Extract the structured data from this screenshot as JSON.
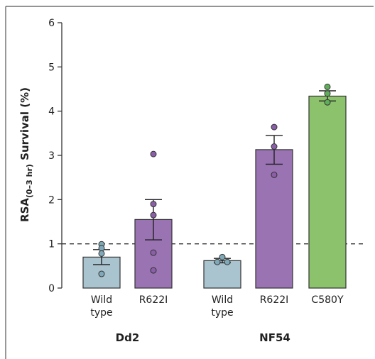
{
  "chart_data": {
    "type": "bar",
    "title": "",
    "ylabel": {
      "prefix": "RSA",
      "subscript": "(0–3 hr)",
      "suffix": " Survival (%)"
    },
    "ylim": [
      0,
      6
    ],
    "yticks": [
      "0",
      "1",
      "2",
      "3",
      "4",
      "5",
      "6"
    ],
    "reference_line": {
      "y": 1,
      "style": "dashed"
    },
    "groups": [
      {
        "name": "Dd2",
        "categories": [
          0,
          1
        ]
      },
      {
        "name": "NF54",
        "categories": [
          2,
          3,
          4
        ]
      }
    ],
    "categories": [
      {
        "label": [
          "Wild",
          "type"
        ],
        "value": 0.7,
        "error": [
          0.53,
          0.87
        ],
        "color": "#a9c3cf",
        "points": [
          0.99,
          0.9,
          0.78,
          0.32
        ]
      },
      {
        "label": [
          "R622I"
        ],
        "value": 1.55,
        "error": [
          1.09,
          2.0
        ],
        "color": "#9973b2",
        "points": [
          3.03,
          1.9,
          1.65,
          0.8,
          0.4
        ]
      },
      {
        "label": [
          "Wild",
          "type"
        ],
        "value": 0.62,
        "error": [
          0.57,
          0.67
        ],
        "color": "#a9c3cf",
        "points": [
          0.7,
          0.59,
          0.59
        ]
      },
      {
        "label": [
          "R622I"
        ],
        "value": 3.13,
        "error": [
          2.8,
          3.45
        ],
        "color": "#9973b2",
        "points": [
          3.64,
          3.2,
          2.56
        ]
      },
      {
        "label": [
          "C580Y"
        ],
        "value": 4.34,
        "error": [
          4.23,
          4.46
        ],
        "color": "#8dc26d",
        "points": [
          4.55,
          4.4,
          4.2
        ]
      }
    ],
    "point_colors": [
      "#7fa9b8",
      "#8a5fa8",
      "#7fa9b8",
      "#8a5fa8",
      "#5faf5a"
    ],
    "grid": false,
    "legend": "none"
  }
}
